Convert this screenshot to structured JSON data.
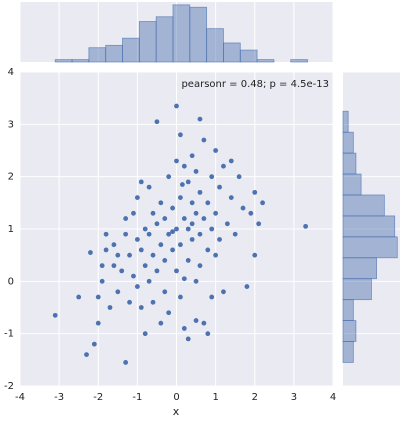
{
  "chart_data": {
    "type": "scatter",
    "annotation": "pearsonr = 0.48; p = 4.5e-13",
    "x_label": "x",
    "xlim": [
      -4,
      4
    ],
    "xticks": [
      -4,
      -3,
      -2,
      -1,
      0,
      1,
      2,
      3,
      4
    ],
    "ylim": [
      -2,
      4
    ],
    "yticks": [
      -2,
      -1,
      0,
      1,
      2,
      3,
      4
    ],
    "grid": true,
    "color": "#4c72b0",
    "x": [
      -3.1,
      -2.3,
      -2.5,
      -1.3,
      -2.1,
      -2.0,
      -2.0,
      -1.9,
      -1.9,
      -1.8,
      -1.8,
      -1.6,
      -1.6,
      -1.5,
      -1.5,
      -1.4,
      -1.3,
      -1.3,
      -1.2,
      -1.2,
      -1.1,
      -1.1,
      -1.0,
      -1.0,
      -1.0,
      -0.9,
      -0.9,
      -0.8,
      -0.8,
      -0.8,
      -0.7,
      -0.7,
      -0.7,
      -0.6,
      -0.6,
      -0.6,
      -0.5,
      -0.5,
      -0.5,
      -0.4,
      -0.4,
      -0.4,
      -0.3,
      -0.3,
      -0.3,
      -0.2,
      -0.2,
      -0.2,
      -0.1,
      -0.1,
      0.0,
      0.0,
      0.0,
      0.0,
      0.1,
      0.1,
      0.1,
      0.1,
      0.2,
      0.2,
      0.2,
      0.3,
      0.3,
      0.3,
      0.3,
      0.4,
      0.4,
      0.4,
      0.5,
      0.5,
      0.5,
      0.5,
      0.6,
      0.6,
      0.6,
      0.7,
      0.7,
      0.7,
      0.8,
      0.8,
      0.9,
      0.9,
      0.9,
      1.0,
      1.0,
      1.0,
      1.1,
      1.1,
      1.2,
      1.2,
      1.3,
      1.4,
      1.5,
      1.6,
      1.7,
      1.8,
      1.9,
      2.0,
      2.0,
      2.1,
      2.2,
      3.3,
      0.8,
      0.2,
      -1.7,
      -2.2,
      0.6,
      1.4,
      0.4,
      -0.1,
      0.15,
      -0.9
    ],
    "y": [
      -0.65,
      -1.4,
      -0.3,
      -1.55,
      -1.2,
      -0.8,
      -0.3,
      0.0,
      0.3,
      0.6,
      0.9,
      0.3,
      0.7,
      0.5,
      -0.2,
      0.2,
      0.9,
      1.2,
      -0.4,
      0.5,
      0.1,
      1.3,
      1.6,
      0.8,
      -0.1,
      0.6,
      -0.5,
      1.0,
      0.3,
      -1.0,
      1.8,
      0.9,
      0.0,
      1.3,
      0.5,
      -0.4,
      3.05,
      1.1,
      0.2,
      1.5,
      0.7,
      -0.8,
      1.2,
      0.4,
      -0.2,
      2.0,
      0.9,
      -0.6,
      1.4,
      0.6,
      3.35,
      2.3,
      1.0,
      0.2,
      2.8,
      1.6,
      0.7,
      -0.3,
      2.2,
      1.2,
      -0.9,
      1.9,
      1.0,
      0.4,
      -1.1,
      2.4,
      1.5,
      0.8,
      2.1,
      1.3,
      0.0,
      -0.75,
      1.7,
      0.9,
      0.3,
      2.7,
      1.2,
      -0.8,
      1.5,
      0.6,
      2.0,
      1.0,
      -0.3,
      2.5,
      1.3,
      0.5,
      1.8,
      0.8,
      2.2,
      -0.2,
      1.1,
      1.6,
      0.9,
      2.0,
      1.4,
      -0.1,
      1.3,
      1.7,
      0.5,
      1.1,
      1.5,
      1.05,
      -1.0,
      0.05,
      -0.5,
      0.55,
      3.1,
      2.3,
      1.1,
      0.95,
      1.85,
      1.9
    ],
    "marginal_x": {
      "bins": [
        -3.1,
        -2.67,
        -2.24,
        -1.81,
        -1.38,
        -0.95,
        -0.52,
        -0.09,
        0.34,
        0.77,
        1.2,
        1.63,
        2.06,
        2.49,
        2.92,
        3.35
      ],
      "counts": [
        1,
        1,
        6,
        7,
        10,
        17,
        19,
        24,
        23,
        14,
        8,
        5,
        1,
        0,
        1
      ]
    },
    "marginal_y": {
      "bins": [
        -1.55,
        -1.15,
        -0.75,
        -0.35,
        0.05,
        0.45,
        0.85,
        1.25,
        1.65,
        2.05,
        2.45,
        2.85,
        3.25
      ],
      "counts": [
        4,
        5,
        4,
        11,
        13,
        21,
        20,
        16,
        7,
        5,
        4,
        2
      ]
    }
  }
}
